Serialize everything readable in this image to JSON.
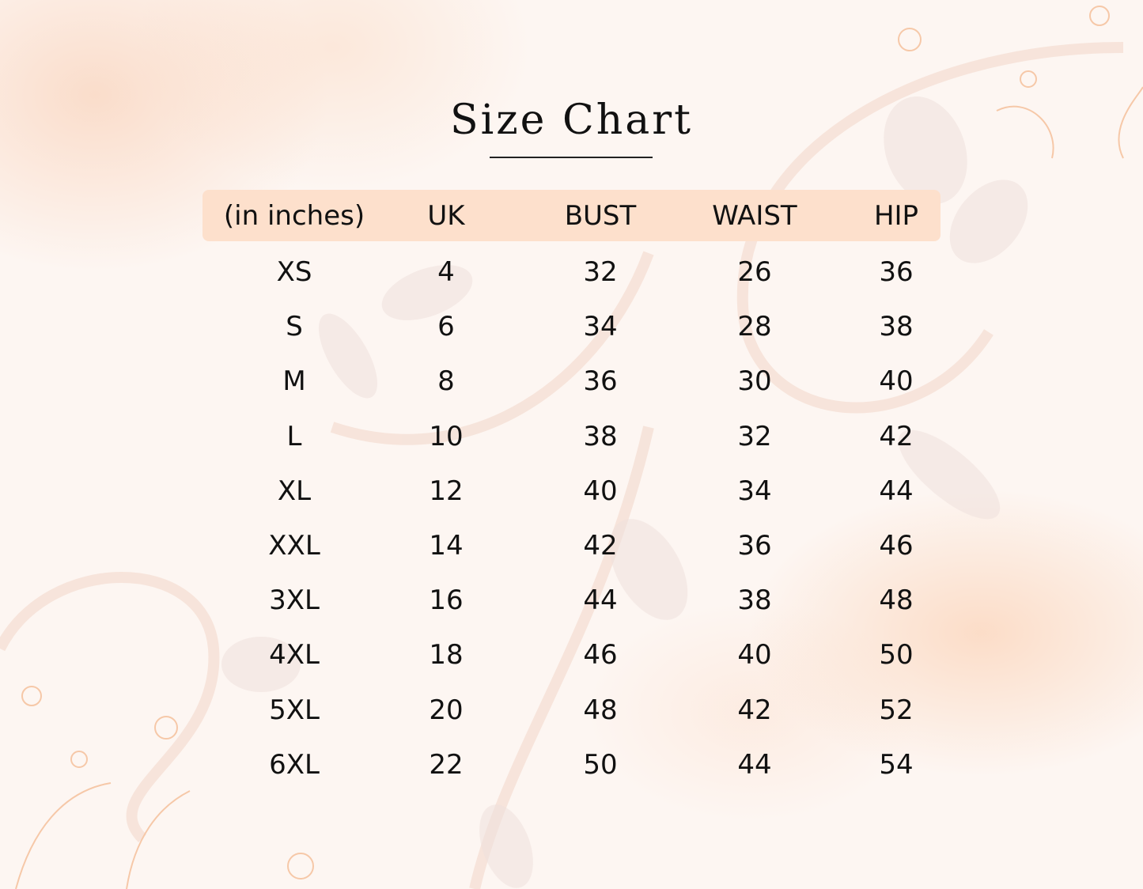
{
  "title": "Size Chart",
  "colors": {
    "header_band": "#fde0cc",
    "background": "#fdf6f2",
    "accent": "#f6c8a8"
  },
  "table": {
    "headers": [
      "(in inches)",
      "UK",
      "BUST",
      "WAIST",
      "HIP"
    ],
    "rows": [
      [
        "XS",
        "4",
        "32",
        "26",
        "36"
      ],
      [
        "S",
        "6",
        "34",
        "28",
        "38"
      ],
      [
        "M",
        "8",
        "36",
        "30",
        "40"
      ],
      [
        "L",
        "10",
        "38",
        "32",
        "42"
      ],
      [
        "XL",
        "12",
        "40",
        "34",
        "44"
      ],
      [
        "XXL",
        "14",
        "42",
        "36",
        "46"
      ],
      [
        "3XL",
        "16",
        "44",
        "38",
        "48"
      ],
      [
        "4XL",
        "18",
        "46",
        "40",
        "50"
      ],
      [
        "5XL",
        "20",
        "48",
        "42",
        "52"
      ],
      [
        "6XL",
        "22",
        "50",
        "44",
        "54"
      ]
    ]
  }
}
